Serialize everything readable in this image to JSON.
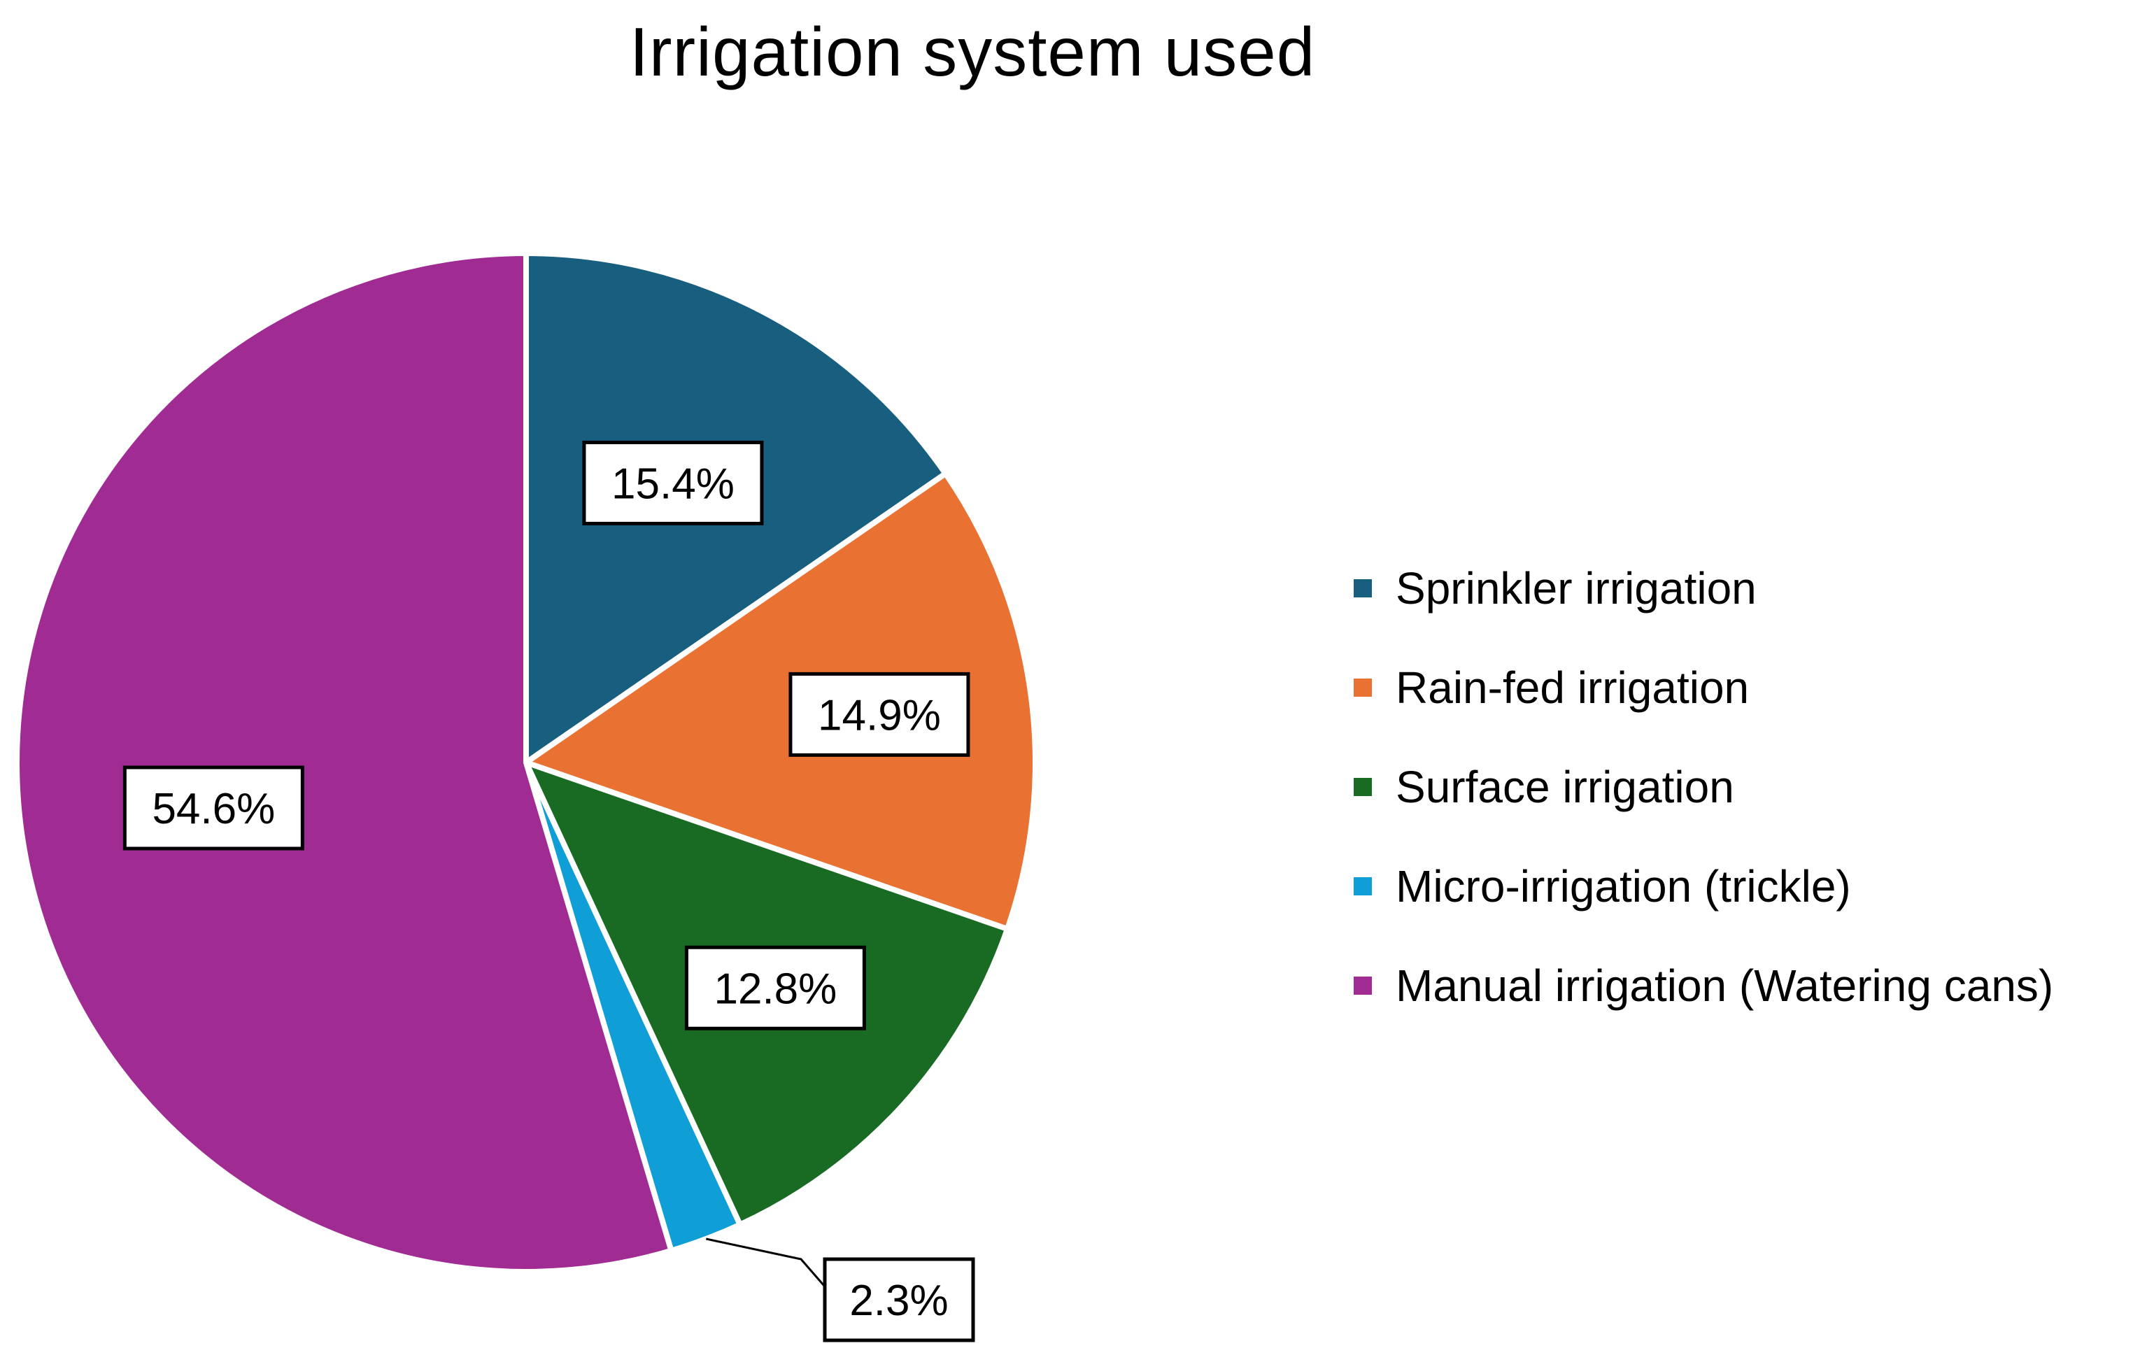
{
  "chart_data": {
    "type": "pie",
    "title": "Irrigation system used",
    "legend_position": "right",
    "slices": [
      {
        "name": "Sprinkler irrigation",
        "value": 15.4,
        "label": "15.4%",
        "color": "#175E7F"
      },
      {
        "name": "Rain-fed irrigation",
        "value": 14.9,
        "label": "14.9%",
        "color": "#E97132"
      },
      {
        "name": "Surface irrigation",
        "value": 12.8,
        "label": "12.8%",
        "color": "#196B24"
      },
      {
        "name": "Micro-irrigation (trickle)",
        "value": 2.3,
        "label": "2.3%",
        "color": "#0F9ED5"
      },
      {
        "name": "Manual irrigation (Watering cans)",
        "value": 54.6,
        "label": "54.6%",
        "color": "#A02B93"
      }
    ]
  }
}
